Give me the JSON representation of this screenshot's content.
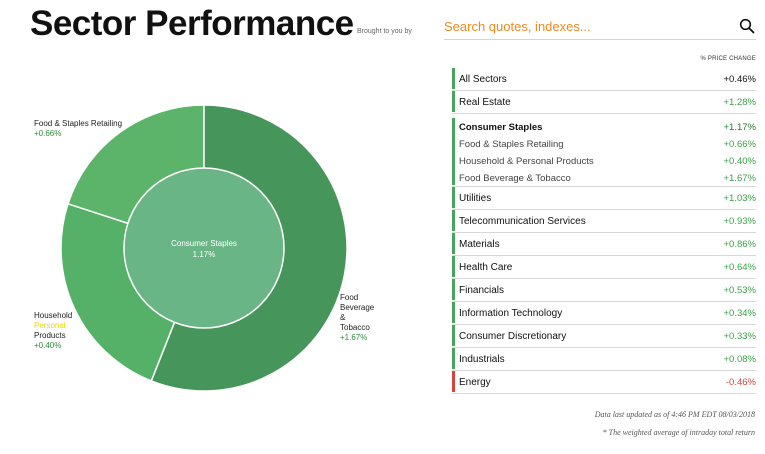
{
  "header": {
    "title": "Sector Performance",
    "brought_to_you_by": "Brought to you by"
  },
  "search": {
    "placeholder": "Search quotes, indexes..."
  },
  "donut": {
    "center_label": "Consumer Staples",
    "center_value": "1.17%",
    "segments": [
      {
        "name_lines": [
          "Food & Staples Retailing"
        ],
        "pct": "+0.66%",
        "share": 0.2,
        "color": "#5cb36a"
      },
      {
        "name_lines": [
          "Household",
          "Products"
        ],
        "name_sub": "Personal",
        "pct": "+0.40%",
        "share": 0.24,
        "color": "#55b168"
      },
      {
        "name_lines": [
          "Food",
          "Beverage",
          "&",
          "Tobacco"
        ],
        "pct": "+1.67%",
        "share": 0.56,
        "color": "#46955a"
      }
    ],
    "inner_color": "#6ab585"
  },
  "table": {
    "column_header": "% PRICE CHANGE",
    "rows_top": [
      {
        "name": "All Sectors",
        "value": "+0.46%",
        "dark": true
      },
      {
        "name": "Real Estate",
        "value": "+1.28%"
      }
    ],
    "group": {
      "name": "Consumer Staples",
      "value": "+1.17%",
      "children": [
        {
          "name": "Food & Staples Retailing",
          "value": "+0.66%"
        },
        {
          "name": "Household & Personal Products",
          "value": "+0.40%"
        },
        {
          "name": "Food Beverage & Tobacco",
          "value": "+1.67%"
        }
      ]
    },
    "rows_bottom": [
      {
        "name": "Utilities",
        "value": "+1.03%"
      },
      {
        "name": "Telecommunication Services",
        "value": "+0.93%"
      },
      {
        "name": "Materials",
        "value": "+0.86%"
      },
      {
        "name": "Health Care",
        "value": "+0.64%"
      },
      {
        "name": "Financials",
        "value": "+0.53%"
      },
      {
        "name": "Information Technology",
        "value": "+0.34%"
      },
      {
        "name": "Consumer Discretionary",
        "value": "+0.33%"
      },
      {
        "name": "Industrials",
        "value": "+0.08%"
      },
      {
        "name": "Energy",
        "value": "-0.46%",
        "negative": true
      }
    ]
  },
  "footer": {
    "updated": "Data last updated as of 4:46 PM EDT 08/03/2018",
    "note": "* The weighted average of intraday total return"
  },
  "colors": {
    "accent": "#ef8a1e",
    "positive": "#3aa148",
    "negative": "#d9433b"
  }
}
